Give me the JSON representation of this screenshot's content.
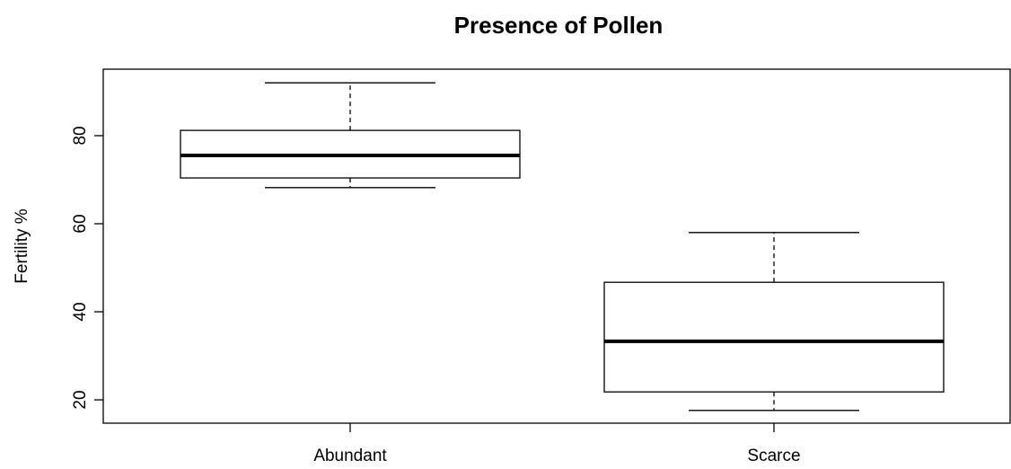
{
  "chart_data": {
    "type": "box",
    "title": "Presence of Pollen",
    "y_label": "Fertility %",
    "categories": [
      "Abundant",
      "Scarce"
    ],
    "whisker_low": [
      68.2,
      17.6
    ],
    "q1": [
      70.4,
      21.8
    ],
    "median": [
      75.5,
      33.3
    ],
    "q3": [
      81.2,
      46.7
    ],
    "whisker_high": [
      92.0,
      58.0
    ],
    "color": "#ffffff",
    "ylim": [
      14.7,
      95.1
    ],
    "yticks": [
      20,
      40,
      60,
      80
    ]
  }
}
